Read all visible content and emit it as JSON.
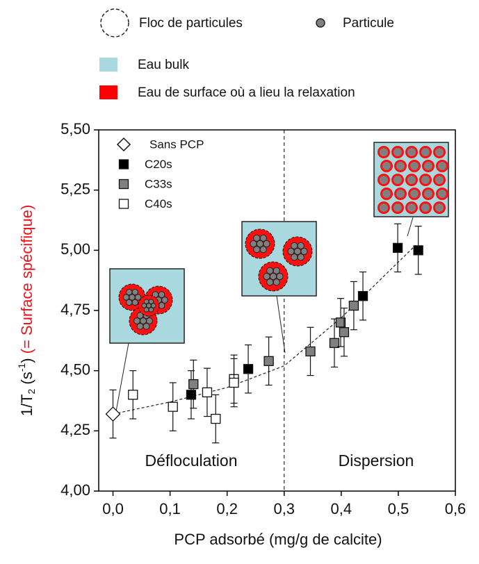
{
  "chart_data": {
    "type": "scatter",
    "xlabel": "PCP adsorbé (mg/g de calcite)",
    "ylabel": {
      "base": "1/T",
      "sub": "2",
      "unit_open": " (s",
      "sup": "-1",
      "unit_close": ")",
      "note": " (= Surface spécifique)"
    },
    "ylabel_note_color": "#e8141c",
    "xlim": [
      -0.025,
      0.6
    ],
    "ylim": [
      4.0,
      5.5
    ],
    "xticks": [
      {
        "value": 0,
        "label": "0,0"
      },
      {
        "value": 0.1,
        "label": "0,1"
      },
      {
        "value": 0.2,
        "label": "0,2"
      },
      {
        "value": 0.3,
        "label": "0,3"
      },
      {
        "value": 0.4,
        "label": "0,4"
      },
      {
        "value": 0.5,
        "label": "0,5"
      },
      {
        "value": 0.6,
        "label": "0,6"
      }
    ],
    "yticks": [
      {
        "value": 4.0,
        "label": "4,00"
      },
      {
        "value": 4.25,
        "label": "4,25"
      },
      {
        "value": 4.5,
        "label": "4,50"
      },
      {
        "value": 4.75,
        "label": "4,75"
      },
      {
        "value": 5.0,
        "label": "5,00"
      },
      {
        "value": 5.25,
        "label": "5,25"
      },
      {
        "value": 5.5,
        "label": "5,50"
      }
    ],
    "series": [
      {
        "name": "Sans PCP",
        "marker": "diamond",
        "color": "#ffffff",
        "x": [
          0.0
        ],
        "values": [
          4.32
        ],
        "errors": [
          0.1
        ]
      },
      {
        "name": "C20s",
        "marker": "square",
        "color": "#000000",
        "x": [
          0.137,
          0.237,
          0.438,
          0.499,
          0.535
        ],
        "values": [
          4.4,
          4.507,
          4.81,
          5.01,
          5.0
        ],
        "errors": [
          0.1,
          0.1,
          0.1,
          0.1,
          0.1
        ]
      },
      {
        "name": "C33s",
        "marker": "square",
        "color": "#808080",
        "x": [
          0.141,
          0.273,
          0.346,
          0.388,
          0.399,
          0.405,
          0.422
        ],
        "values": [
          4.444,
          4.54,
          4.58,
          4.615,
          4.7,
          4.66,
          4.77
        ],
        "errors": [
          0.1,
          0.1,
          0.1,
          0.1,
          0.1,
          0.1,
          0.1
        ]
      },
      {
        "name": "C40s",
        "marker": "square",
        "color": "#ffffff",
        "x": [
          0.035,
          0.105,
          0.165,
          0.18,
          0.212,
          0.212
        ],
        "values": [
          4.4,
          4.35,
          4.41,
          4.3,
          4.465,
          4.45
        ],
        "errors": [
          0.1,
          0.1,
          0.1,
          0.1,
          0.1,
          0.1
        ]
      }
    ],
    "trend": {
      "x": [
        0.0,
        0.1,
        0.2,
        0.3,
        0.4,
        0.53
      ],
      "values": [
        4.32,
        4.37,
        4.43,
        4.52,
        4.72,
        5.02
      ]
    },
    "divider_x": 0.3,
    "annotations": [
      "Défloculation",
      "Dispersion"
    ],
    "key": {
      "floc": "Floc de particules",
      "particle": "Particule",
      "bulk": "Eau bulk",
      "surface": "Eau de surface où a lieu la relaxation"
    }
  }
}
